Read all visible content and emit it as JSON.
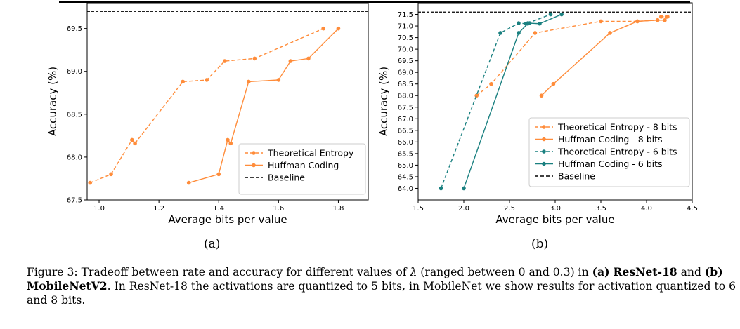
{
  "chart_data": [
    {
      "type": "line",
      "xlabel": "Average bits per value",
      "ylabel": "Accuracy (%)",
      "xlim": [
        0.96,
        1.9
      ],
      "ylim": [
        67.5,
        69.8
      ],
      "xticks": [
        "1.0",
        "1.2",
        "1.4",
        "1.6",
        "1.8"
      ],
      "yticks": [
        "67.5",
        "68.0",
        "68.5",
        "69.0",
        "69.5"
      ],
      "legend_position": "lower-right",
      "grid": false,
      "baseline": {
        "name": "Baseline",
        "y": 69.7,
        "color": "#000000",
        "style": "dashed"
      },
      "series": [
        {
          "name": "Theoretical Entropy",
          "color": "#ff8c3a",
          "style": "dashed",
          "x": [
            0.97,
            1.04,
            1.11,
            1.12,
            1.28,
            1.36,
            1.42,
            1.52,
            1.75
          ],
          "y": [
            67.7,
            67.8,
            68.2,
            68.16,
            68.88,
            68.9,
            69.12,
            69.15,
            69.5
          ]
        },
        {
          "name": "Huffman Coding",
          "color": "#ff8c3a",
          "style": "solid",
          "x": [
            1.3,
            1.4,
            1.43,
            1.44,
            1.5,
            1.6,
            1.64,
            1.7,
            1.8
          ],
          "y": [
            67.7,
            67.8,
            68.2,
            68.16,
            68.88,
            68.9,
            69.12,
            69.15,
            69.5
          ]
        }
      ]
    },
    {
      "type": "line",
      "xlabel": "Average bits per value",
      "ylabel": "Accuracy (%)",
      "xlim": [
        1.5,
        4.5
      ],
      "ylim": [
        63.5,
        72.0
      ],
      "xticks": [
        "1.5",
        "2.0",
        "2.5",
        "3.0",
        "3.5",
        "4.0",
        "4.5"
      ],
      "yticks": [
        "64.0",
        "64.5",
        "65.0",
        "65.5",
        "66.0",
        "66.5",
        "67.0",
        "67.5",
        "68.0",
        "68.5",
        "69.0",
        "69.5",
        "70.0",
        "70.5",
        "71.0",
        "71.5"
      ],
      "legend_position": "lower-right",
      "grid": false,
      "baseline": {
        "name": "Baseline",
        "y": 71.6,
        "color": "#000000",
        "style": "dashed"
      },
      "series": [
        {
          "name": "Theoretical Entropy - 8 bits",
          "color": "#ff8c3a",
          "style": "dashed",
          "x": [
            2.14,
            2.3,
            2.78,
            3.5,
            3.9,
            4.12,
            4.16,
            4.22
          ],
          "y": [
            68.0,
            68.5,
            70.7,
            71.2,
            71.2,
            71.25,
            71.4,
            71.4
          ]
        },
        {
          "name": "Huffman Coding - 8 bits",
          "color": "#ff8c3a",
          "style": "solid",
          "x": [
            2.85,
            2.98,
            3.6,
            3.9,
            4.12,
            4.2,
            4.23
          ],
          "y": [
            68.0,
            68.5,
            70.7,
            71.2,
            71.25,
            71.25,
            71.4
          ]
        },
        {
          "name": "Theoretical Entropy - 6 bits",
          "color": "#1a8080",
          "style": "dashed",
          "x": [
            1.75,
            2.4,
            2.6,
            2.68,
            2.7,
            2.95
          ],
          "y": [
            64.0,
            70.7,
            71.12,
            71.1,
            71.12,
            71.5
          ]
        },
        {
          "name": "Huffman Coding - 6 bits",
          "color": "#1a8080",
          "style": "solid",
          "x": [
            2.0,
            2.6,
            2.7,
            2.72,
            2.83,
            3.07
          ],
          "y": [
            64.0,
            70.7,
            71.1,
            71.12,
            71.1,
            71.5
          ]
        }
      ]
    }
  ],
  "subfigure_labels": [
    "(a)",
    "(b)"
  ],
  "caption": {
    "prefix": "Figure 3: Tradeoff between rate and accuracy for different values of ",
    "lambda": "λ",
    "mid1": " (ranged between 0 and 0.3) in ",
    "a_tag": "(a)",
    "a_name": "ResNet-18",
    "mid2": " and ",
    "b_tag": "(b)",
    "b_name": "MobileNetV2",
    "suffix": ". In ResNet-18 the activations are quantized to 5 bits, in MobileNet we show results for activation quantized to 6 and 8 bits."
  }
}
